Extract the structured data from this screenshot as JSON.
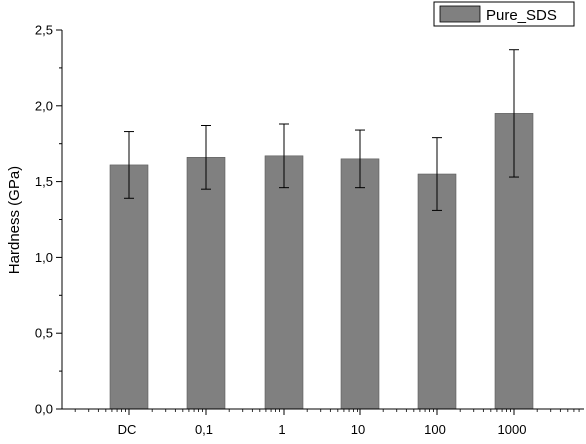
{
  "chart_data": {
    "type": "bar",
    "categories": [
      "DC",
      "0,1",
      "1",
      "10",
      "100",
      "1000"
    ],
    "series": [
      {
        "name": "Pure_SDS",
        "values": [
          1.61,
          1.66,
          1.67,
          1.65,
          1.55,
          1.95
        ],
        "errors": [
          0.22,
          0.21,
          0.21,
          0.19,
          0.24,
          0.42
        ],
        "color": "#808080"
      }
    ],
    "ylabel": "Hardness (GPa)",
    "xlabel": "",
    "ylim": [
      0,
      2.5
    ],
    "yticks": [
      "0,0",
      "0,5",
      "1,0",
      "1,5",
      "2,0",
      "2,5"
    ],
    "legend_position": "top-right",
    "grid": false
  }
}
